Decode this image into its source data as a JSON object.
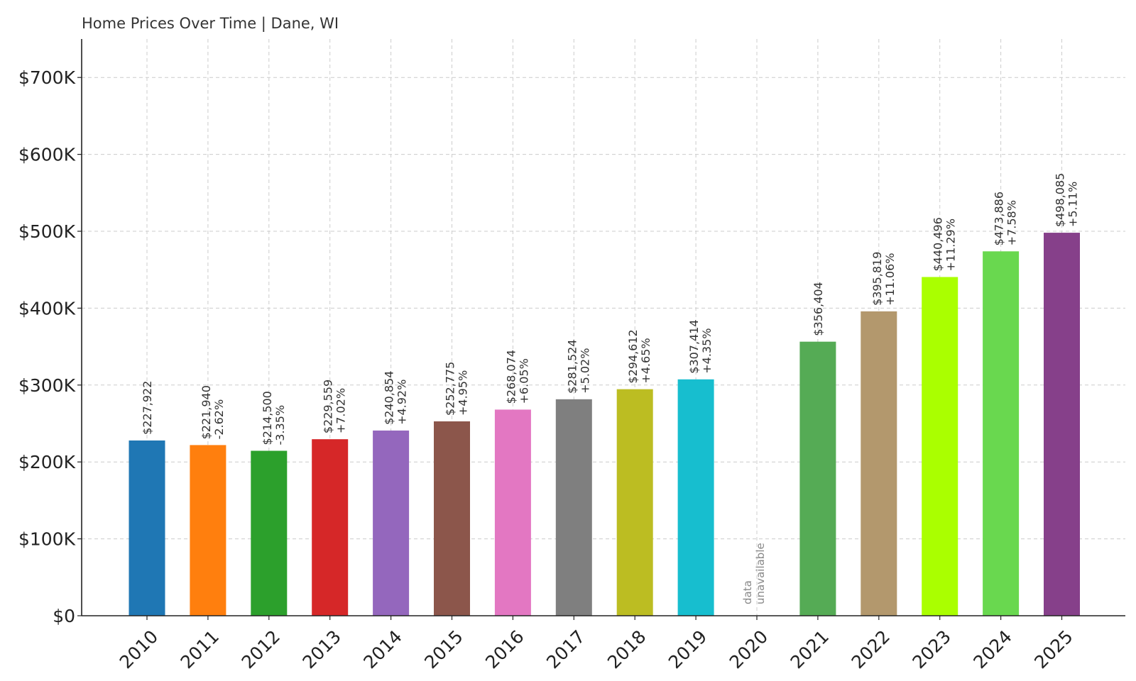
{
  "chart_data": {
    "type": "bar",
    "title": "Home Prices Over Time | Dane, WI",
    "xlabel": "",
    "ylabel": "",
    "ylim": [
      0,
      750000
    ],
    "yticks": [
      0,
      100000,
      200000,
      300000,
      400000,
      500000,
      600000,
      700000
    ],
    "ytick_labels": [
      "$0",
      "$100K",
      "$200K",
      "$300K",
      "$400K",
      "$500K",
      "$600K",
      "$700K"
    ],
    "grid": true,
    "categories": [
      "2010",
      "2011",
      "2012",
      "2013",
      "2014",
      "2015",
      "2016",
      "2017",
      "2018",
      "2019",
      "2020",
      "2021",
      "2022",
      "2023",
      "2024",
      "2025"
    ],
    "values": [
      227922,
      221940,
      214500,
      229559,
      240854,
      252775,
      268074,
      281524,
      294612,
      307414,
      null,
      356404,
      395819,
      440496,
      473886,
      498085
    ],
    "value_labels": [
      "$227,922",
      "$221,940",
      "$214,500",
      "$229,559",
      "$240,854",
      "$252,775",
      "$268,074",
      "$281,524",
      "$294,612",
      "$307,414",
      "",
      "$356,404",
      "$395,819",
      "$440,496",
      "$473,886",
      "$498,085"
    ],
    "change_labels": [
      "",
      "-2.62%",
      "-3.35%",
      "+7.02%",
      "+4.92%",
      "+4.95%",
      "+6.05%",
      "+5.02%",
      "+4.65%",
      "+4.35%",
      "",
      "",
      "+11.06%",
      "+11.29%",
      "+7.58%",
      "+5.11%"
    ],
    "colors": [
      "#1f77b4",
      "#ff7f0e",
      "#2ca02c",
      "#d62728",
      "#9467bd",
      "#8c564b",
      "#e377c2",
      "#7f7f7f",
      "#bcbd22",
      "#17becf",
      "#ffffff",
      "#55ab55",
      "#b3986d",
      "#aaff00",
      "#69d84f",
      "#86408a"
    ],
    "missing_label": [
      "data",
      "unavailable"
    ]
  }
}
